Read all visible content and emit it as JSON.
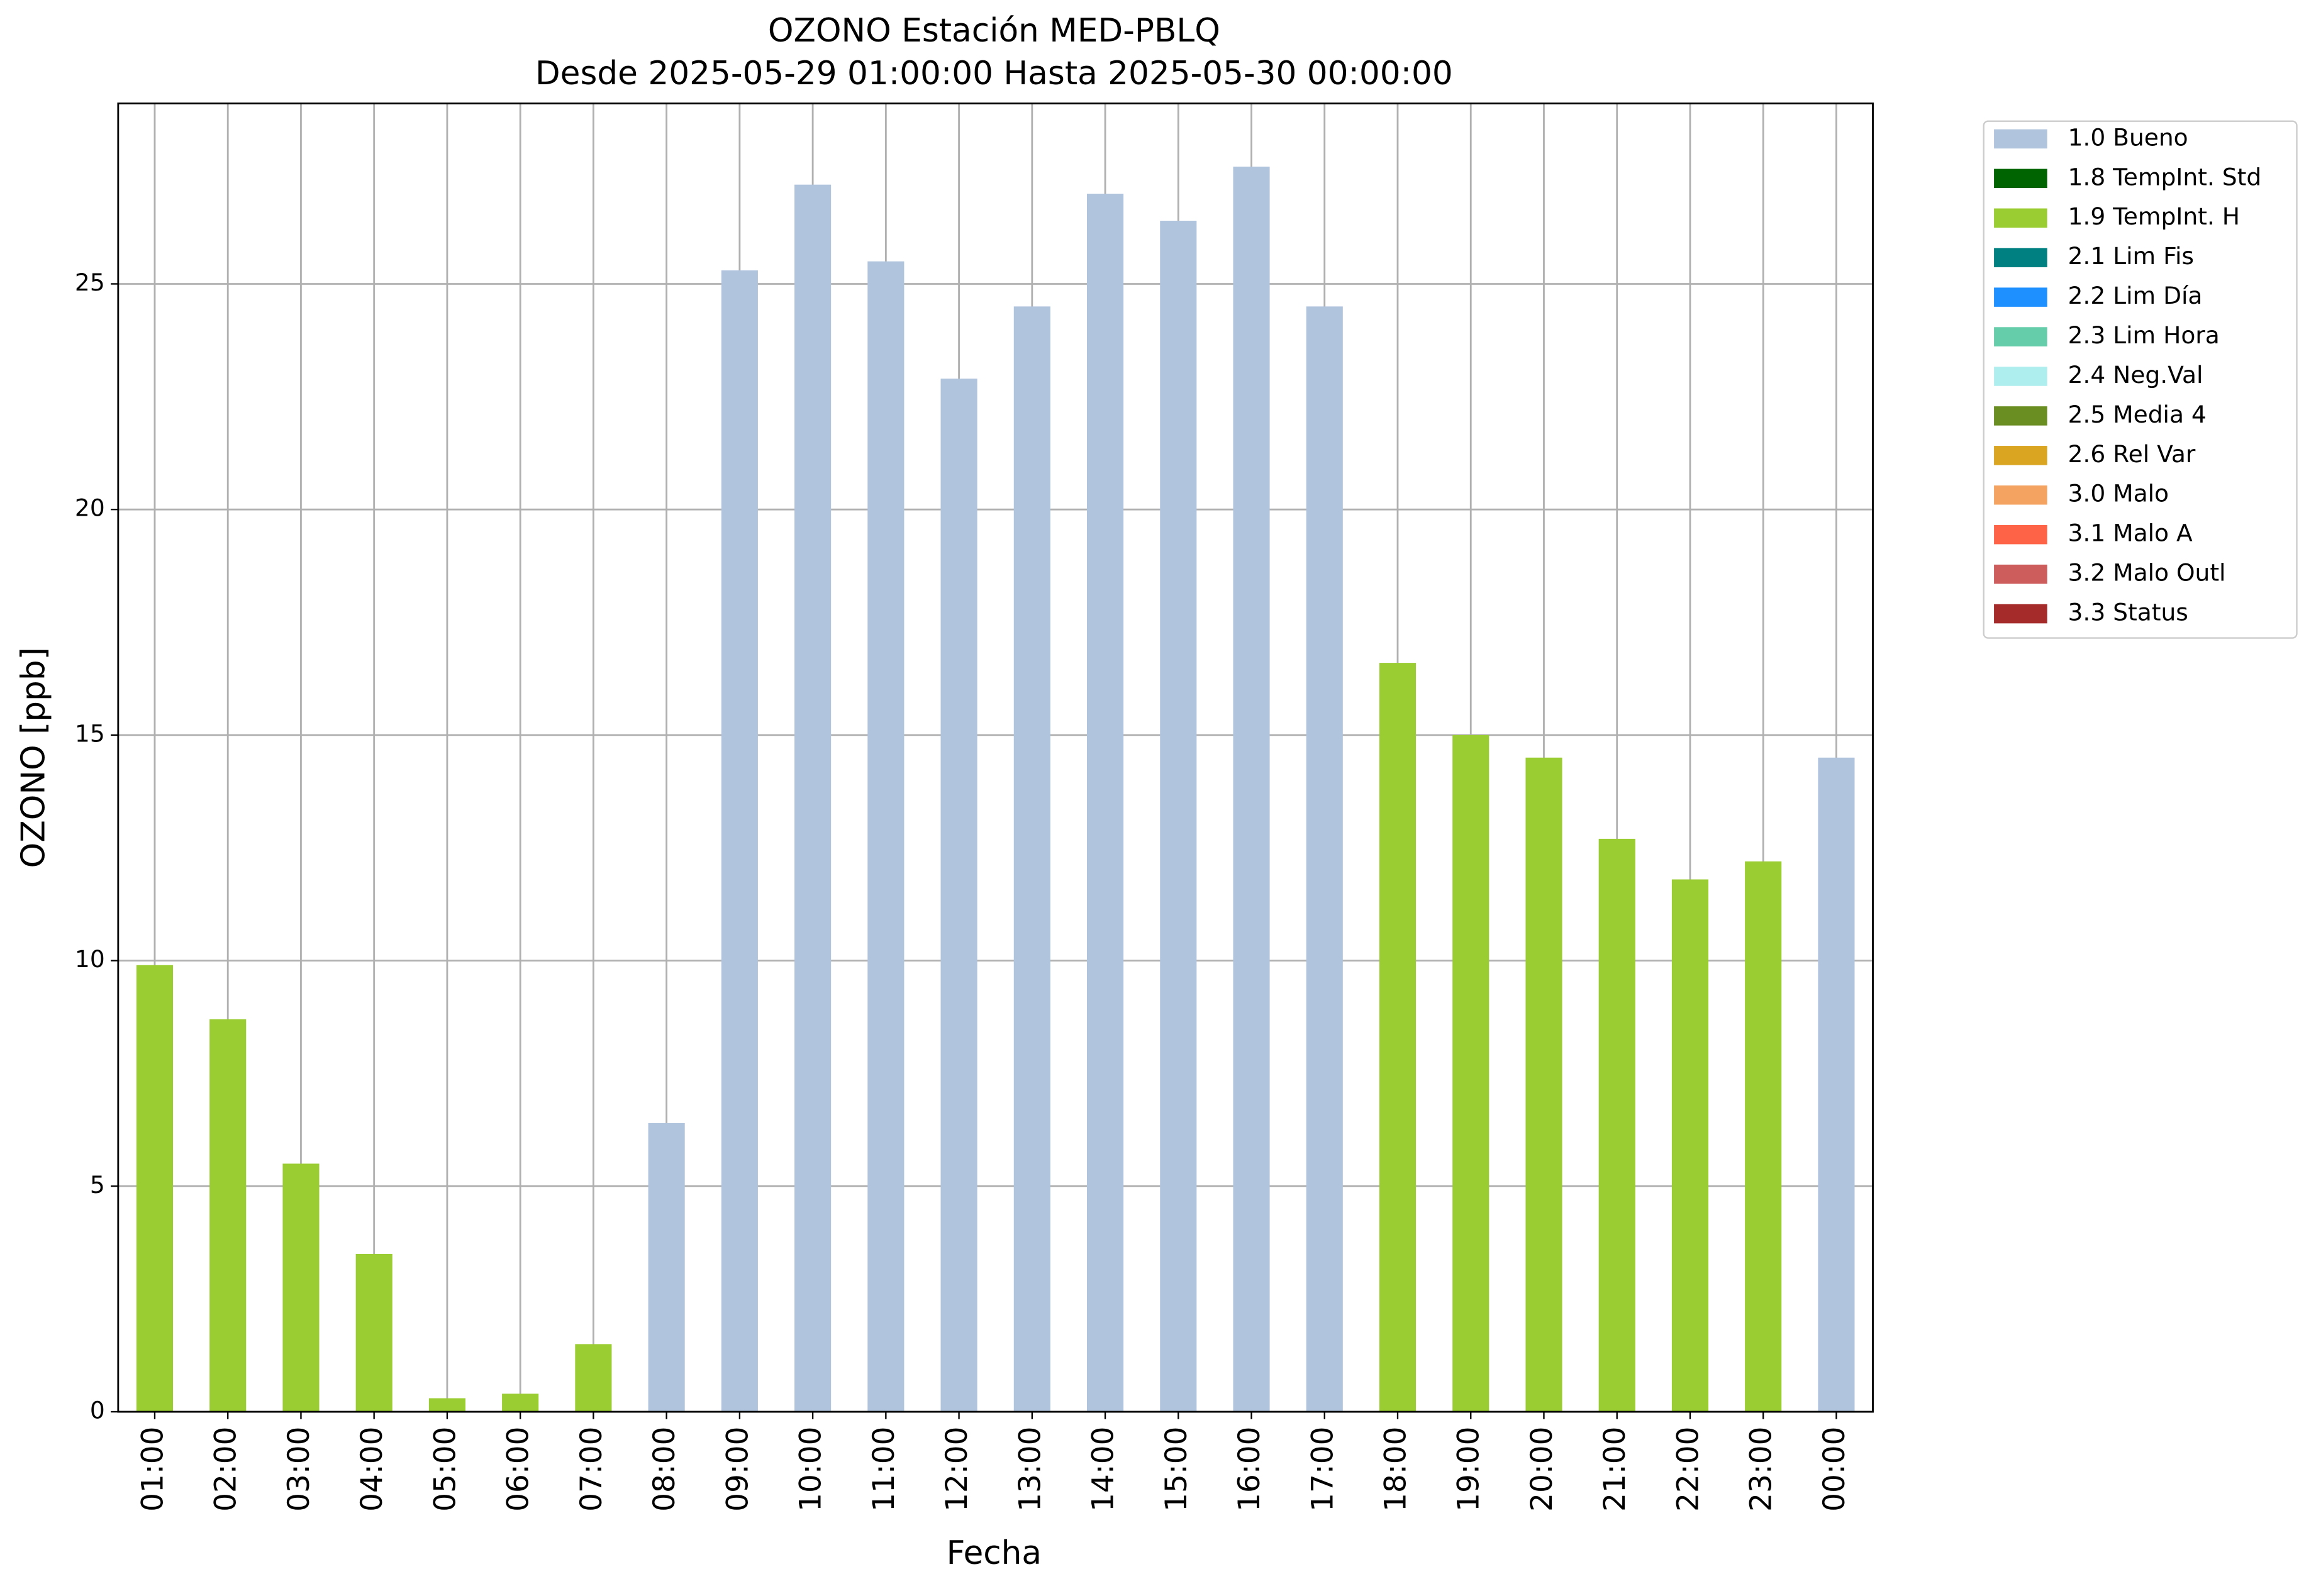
{
  "chart_data": {
    "type": "bar",
    "stacked": true,
    "title": "OZONO Estación MED-PBLQ",
    "subtitle": "Desde 2025-05-29 01:00:00 Hasta 2025-05-30 00:00:00",
    "x_label": "Fecha",
    "y_label": "OZONO [ppb]",
    "categories": [
      "01:00",
      "02:00",
      "03:00",
      "04:00",
      "05:00",
      "06:00",
      "07:00",
      "08:00",
      "09:00",
      "10:00",
      "11:00",
      "12:00",
      "13:00",
      "14:00",
      "15:00",
      "16:00",
      "17:00",
      "18:00",
      "19:00",
      "20:00",
      "21:00",
      "22:00",
      "23:00",
      "00:00"
    ],
    "series": [
      {
        "name": "1.0 Bueno",
        "color": "#b0c4de",
        "values": [
          null,
          null,
          null,
          null,
          null,
          null,
          null,
          6.4,
          25.3,
          27.2,
          25.5,
          22.9,
          24.5,
          27.0,
          26.4,
          27.6,
          24.5,
          null,
          null,
          null,
          null,
          null,
          null,
          14.5
        ]
      },
      {
        "name": "1.8 TempInt. Std",
        "color": "#006400",
        "values": [
          null,
          null,
          null,
          null,
          null,
          null,
          null,
          null,
          null,
          null,
          null,
          null,
          null,
          null,
          null,
          null,
          null,
          null,
          null,
          null,
          null,
          null,
          null,
          null
        ]
      },
      {
        "name": "1.9 TempInt. H",
        "color": "#9acd32",
        "values": [
          9.9,
          8.7,
          5.5,
          3.5,
          0.3,
          0.4,
          1.5,
          null,
          null,
          null,
          null,
          null,
          null,
          null,
          null,
          null,
          null,
          16.6,
          15.0,
          14.5,
          12.7,
          11.8,
          12.2,
          null
        ]
      },
      {
        "name": "2.1 Lim Fis",
        "color": "#008080",
        "values": [
          null,
          null,
          null,
          null,
          null,
          null,
          null,
          null,
          null,
          null,
          null,
          null,
          null,
          null,
          null,
          null,
          null,
          null,
          null,
          null,
          null,
          null,
          null,
          null
        ]
      },
      {
        "name": "2.2 Lim Día",
        "color": "#1e90ff",
        "values": [
          null,
          null,
          null,
          null,
          null,
          null,
          null,
          null,
          null,
          null,
          null,
          null,
          null,
          null,
          null,
          null,
          null,
          null,
          null,
          null,
          null,
          null,
          null,
          null
        ]
      },
      {
        "name": "2.3 Lim Hora",
        "color": "#66cdaa",
        "values": [
          null,
          null,
          null,
          null,
          null,
          null,
          null,
          null,
          null,
          null,
          null,
          null,
          null,
          null,
          null,
          null,
          null,
          null,
          null,
          null,
          null,
          null,
          null,
          null
        ]
      },
      {
        "name": "2.4 Neg.Val",
        "color": "#afeeee",
        "values": [
          null,
          null,
          null,
          null,
          null,
          null,
          null,
          null,
          null,
          null,
          null,
          null,
          null,
          null,
          null,
          null,
          null,
          null,
          null,
          null,
          null,
          null,
          null,
          null
        ]
      },
      {
        "name": "2.5 Media 4",
        "color": "#6b8e23",
        "values": [
          null,
          null,
          null,
          null,
          null,
          null,
          null,
          null,
          null,
          null,
          null,
          null,
          null,
          null,
          null,
          null,
          null,
          null,
          null,
          null,
          null,
          null,
          null,
          null
        ]
      },
      {
        "name": "2.6 Rel Var",
        "color": "#daa520",
        "values": [
          null,
          null,
          null,
          null,
          null,
          null,
          null,
          null,
          null,
          null,
          null,
          null,
          null,
          null,
          null,
          null,
          null,
          null,
          null,
          null,
          null,
          null,
          null,
          null
        ]
      },
      {
        "name": "3.0 Malo",
        "color": "#f4a460",
        "values": [
          null,
          null,
          null,
          null,
          null,
          null,
          null,
          null,
          null,
          null,
          null,
          null,
          null,
          null,
          null,
          null,
          null,
          null,
          null,
          null,
          null,
          null,
          null,
          null
        ]
      },
      {
        "name": "3.1 Malo A",
        "color": "#ff6347",
        "values": [
          null,
          null,
          null,
          null,
          null,
          null,
          null,
          null,
          null,
          null,
          null,
          null,
          null,
          null,
          null,
          null,
          null,
          null,
          null,
          null,
          null,
          null,
          null,
          null
        ]
      },
      {
        "name": "3.2 Malo Outl",
        "color": "#cd5c5c",
        "values": [
          null,
          null,
          null,
          null,
          null,
          null,
          null,
          null,
          null,
          null,
          null,
          null,
          null,
          null,
          null,
          null,
          null,
          null,
          null,
          null,
          null,
          null,
          null,
          null
        ]
      },
      {
        "name": "3.3 Status",
        "color": "#a52a2a",
        "values": [
          null,
          null,
          null,
          null,
          null,
          null,
          null,
          null,
          null,
          null,
          null,
          null,
          null,
          null,
          null,
          null,
          null,
          null,
          null,
          null,
          null,
          null,
          null,
          null
        ]
      }
    ],
    "ylim": [
      0,
      29
    ],
    "yticks": [
      0,
      5,
      10,
      15,
      20,
      25
    ],
    "grid": true,
    "legend": "outside-upper-right"
  }
}
